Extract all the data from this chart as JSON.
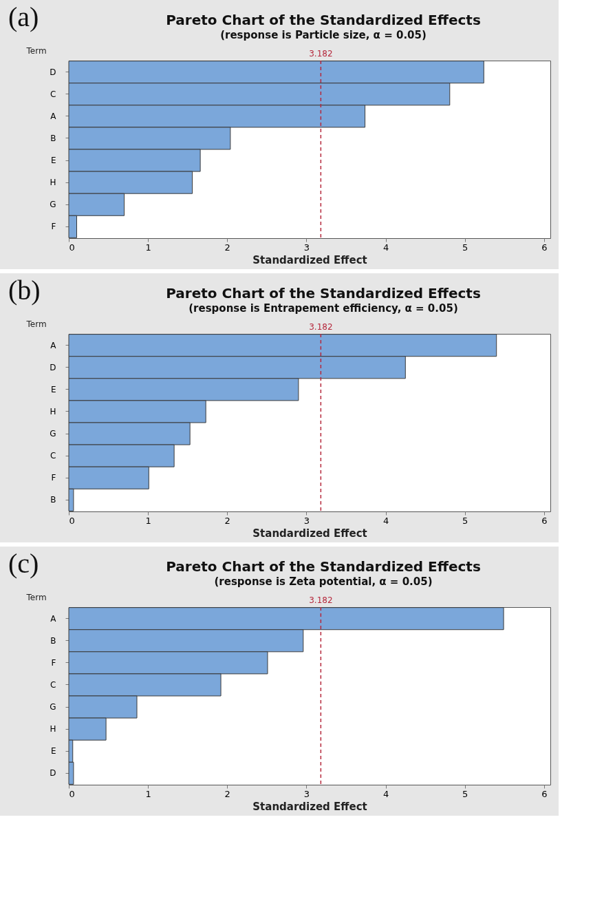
{
  "chart_data": [
    {
      "type": "bar",
      "orientation": "horizontal",
      "title": "Pareto Chart of the Standardized Effects",
      "subtitle": "(response is Particle size, α = 0.05)",
      "xlabel": "Standardized Effect",
      "ylabel": "Term",
      "annotations": [
        "(a)"
      ],
      "categories": [
        "D",
        "C",
        "A",
        "B",
        "E",
        "H",
        "G",
        "F"
      ],
      "values": [
        5.24,
        4.81,
        3.74,
        2.04,
        1.66,
        1.56,
        0.7,
        0.1
      ],
      "color": "#7ba7da",
      "xlim": [
        0,
        6.08
      ],
      "xticks": [
        0,
        1,
        2,
        3,
        4,
        5,
        6
      ],
      "grid": false,
      "ref_lines": [
        {
          "axis": "x",
          "value": 3.182,
          "label": "3.182",
          "color": "#b5283c",
          "line_style": "dashed"
        }
      ]
    },
    {
      "type": "bar",
      "orientation": "horizontal",
      "title": "Pareto Chart of the Standardized Effects",
      "subtitle": "(response is Entrapement efficiency, α = 0.05)",
      "xlabel": "Standardized Effect",
      "ylabel": "Term",
      "annotations": [
        "(b)"
      ],
      "categories": [
        "A",
        "D",
        "E",
        "H",
        "G",
        "C",
        "F",
        "B"
      ],
      "values": [
        5.4,
        4.25,
        2.9,
        1.73,
        1.53,
        1.33,
        1.01,
        0.06
      ],
      "color": "#7ba7da",
      "xlim": [
        0,
        6.08
      ],
      "xticks": [
        0,
        1,
        2,
        3,
        4,
        5,
        6
      ],
      "grid": false,
      "ref_lines": [
        {
          "axis": "x",
          "value": 3.182,
          "label": "3.182",
          "color": "#b5283c",
          "line_style": "dashed"
        }
      ]
    },
    {
      "type": "bar",
      "orientation": "horizontal",
      "title": "Pareto Chart of the Standardized Effects",
      "subtitle": "(response is Zeta potential, α = 0.05)",
      "xlabel": "Standardized Effect",
      "ylabel": "Term",
      "annotations": [
        "(c)"
      ],
      "categories": [
        "A",
        "B",
        "F",
        "C",
        "G",
        "H",
        "E",
        "D"
      ],
      "values": [
        5.49,
        2.96,
        2.51,
        1.92,
        0.86,
        0.47,
        0.05,
        0.06
      ],
      "color": "#7ba7da",
      "xlim": [
        0,
        6.08
      ],
      "xticks": [
        0,
        1,
        2,
        3,
        4,
        5,
        6
      ],
      "grid": false,
      "ref_lines": [
        {
          "axis": "x",
          "value": 3.182,
          "label": "3.182",
          "color": "#b5283c",
          "line_style": "dashed"
        }
      ]
    }
  ]
}
